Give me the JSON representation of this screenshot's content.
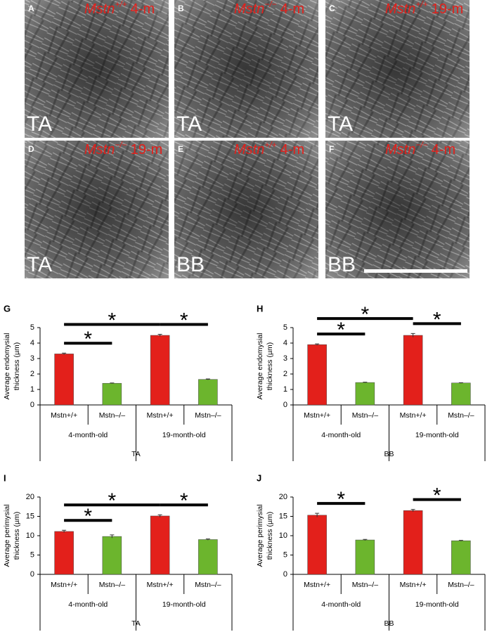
{
  "panels": [
    {
      "letter": "A",
      "gene": "Mstn",
      "genotype": "+/+",
      "age": "4-m",
      "tissue": "TA"
    },
    {
      "letter": "B",
      "gene": "Mstn",
      "genotype": "−/−",
      "age": "4-m",
      "tissue": "TA"
    },
    {
      "letter": "C",
      "gene": "Mstn",
      "genotype": "+/+",
      "age": "19-m",
      "tissue": "TA"
    },
    {
      "letter": "D",
      "gene": "Mstn",
      "genotype": "−/−",
      "age": "19-m",
      "tissue": "TA"
    },
    {
      "letter": "E",
      "gene": "Mstn",
      "genotype": "+/+",
      "age": "4-m",
      "tissue": "BB"
    },
    {
      "letter": "F",
      "gene": "Mstn",
      "genotype": "−/−",
      "age": "4-m",
      "tissue": "BB"
    }
  ],
  "chart_data": [
    {
      "type": "bar",
      "panel": "G",
      "ylabel": [
        "Average endomysial",
        "thickness (µm)"
      ],
      "categories": [
        "Mstn+/+",
        "Mstn–/–",
        "Mstn+/+",
        "Mstn–/–"
      ],
      "groups": [
        "4-month-old",
        "19-month-old"
      ],
      "tissue": "TA",
      "values": [
        3.3,
        1.4,
        4.5,
        1.65
      ],
      "errors": [
        0.05,
        0.02,
        0.07,
        0.03
      ],
      "colors": [
        "#e3201b",
        "#6cb52d",
        "#e3201b",
        "#6cb52d"
      ],
      "ylim": [
        0,
        5
      ],
      "yticks": [
        0,
        1,
        2,
        3,
        4,
        5
      ],
      "significance": [
        {
          "from": 0,
          "to": 1,
          "label": "*"
        },
        {
          "from": 0,
          "to": 2,
          "label": "*"
        },
        {
          "from": 2,
          "to": 3,
          "label": "*"
        }
      ]
    },
    {
      "type": "bar",
      "panel": "H",
      "ylabel": [
        "Average endomysial",
        "thickness (µm)"
      ],
      "categories": [
        "Mstn+/+",
        "Mstn–/–",
        "Mstn+/+",
        "Mstn–/–"
      ],
      "groups": [
        "4-month-old",
        "19-month-old"
      ],
      "tissue": "BB",
      "values": [
        3.9,
        1.45,
        4.5,
        1.42
      ],
      "errors": [
        0.05,
        0.02,
        0.12,
        0.02
      ],
      "colors": [
        "#e3201b",
        "#6cb52d",
        "#e3201b",
        "#6cb52d"
      ],
      "ylim": [
        0,
        5
      ],
      "yticks": [
        0,
        1,
        2,
        3,
        4,
        5
      ],
      "significance": [
        {
          "from": 0,
          "to": 1,
          "label": "*"
        },
        {
          "from": 0,
          "to": 2,
          "label": "*"
        },
        {
          "from": 2,
          "to": 3,
          "label": "*"
        }
      ]
    },
    {
      "type": "bar",
      "panel": "I",
      "ylabel": [
        "Average perimysial",
        "thickness (µm)"
      ],
      "categories": [
        "Mstn+/+",
        "Mstn–/–",
        "Mstn+/+",
        "Mstn–/–"
      ],
      "groups": [
        "4-month-old",
        "19-month-old"
      ],
      "tissue": "TA",
      "values": [
        11.1,
        9.8,
        15.1,
        9.0
      ],
      "errors": [
        0.3,
        0.4,
        0.3,
        0.15
      ],
      "colors": [
        "#e3201b",
        "#6cb52d",
        "#e3201b",
        "#6cb52d"
      ],
      "ylim": [
        0,
        20
      ],
      "yticks": [
        0,
        5,
        10,
        15,
        20
      ],
      "significance": [
        {
          "from": 0,
          "to": 1,
          "label": "*"
        },
        {
          "from": 0,
          "to": 2,
          "label": "*"
        },
        {
          "from": 2,
          "to": 3,
          "label": "*"
        }
      ]
    },
    {
      "type": "bar",
      "panel": "J",
      "ylabel": [
        "Average perimysial",
        "thickness (µm)"
      ],
      "categories": [
        "Mstn+/+",
        "Mstn–/–",
        "Mstn+/+",
        "Mstn–/–"
      ],
      "groups": [
        "4-month-old",
        "19-month-old"
      ],
      "tissue": "BB",
      "values": [
        15.3,
        8.9,
        16.5,
        8.7
      ],
      "errors": [
        0.5,
        0.15,
        0.3,
        0.1
      ],
      "colors": [
        "#e3201b",
        "#6cb52d",
        "#e3201b",
        "#6cb52d"
      ],
      "ylim": [
        0,
        20
      ],
      "yticks": [
        0,
        5,
        10,
        15,
        20
      ],
      "significance": [
        {
          "from": 0,
          "to": 1,
          "label": "*"
        },
        {
          "from": 2,
          "to": 3,
          "label": "*"
        }
      ]
    }
  ]
}
